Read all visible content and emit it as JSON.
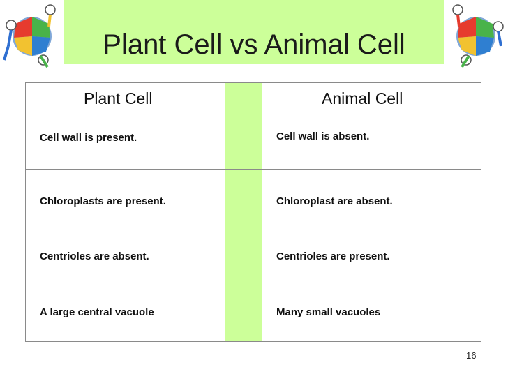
{
  "slide": {
    "title": "Plant Cell vs Animal Cell",
    "page_number": "16"
  },
  "table": {
    "headers": [
      "Plant Cell",
      "Animal Cell"
    ],
    "rows": [
      [
        "Cell wall is present.",
        "Cell wall is absent."
      ],
      [
        "Chloroplasts are present.",
        "Chloroplast are absent."
      ],
      [
        "Centrioles are absent.",
        "Centrioles are present."
      ],
      [
        "A large central vacuole",
        "Many small vacuoles"
      ]
    ]
  },
  "colors": {
    "accent_green": "#ccff99",
    "border": "#8a8a8a"
  },
  "icons": [
    "puzzle-people-clipart-icon"
  ]
}
